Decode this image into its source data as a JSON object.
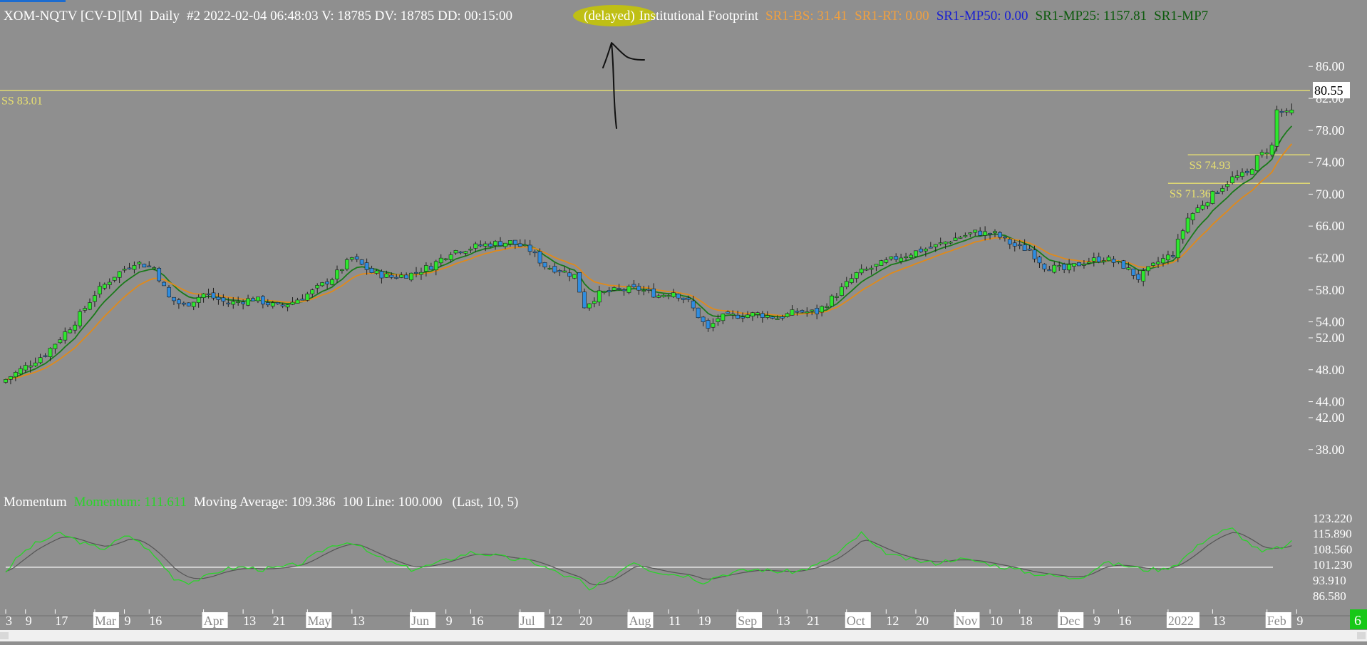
{
  "colors": {
    "background": "#8f8f8f",
    "up_candle": "#2ee82e",
    "down_candle": "#2f8de0",
    "ma_fast": "#1a7a1a",
    "ma_slow": "#e08a1a",
    "ss_line": "#e8e070",
    "momentum": "#2ad42a",
    "momentum_ma": "#555555",
    "hundred_line": "#ffffff",
    "highlight": "#c8c800",
    "text_white": "#ffffff",
    "text_orange": "#f0a040",
    "text_blue": "#1a20d0",
    "text_green": "#0b5a0b"
  },
  "header": {
    "symbol": "XOM-NQTV [CV-D][M]",
    "interval": "Daily",
    "bar_info": "#2 2022-02-04 06:48:03 V: 18785 DV: 18785 DD: 00:15:00",
    "delayed": "(delayed)",
    "study": "Institutional Footprint",
    "sr1_bs": "SR1-BS: 31.41",
    "sr1_rt": "SR1-RT: 0.00",
    "sr1_mp50": "SR1-MP50: 0.00",
    "sr1_mp25": "SR1-MP25: 1157.81",
    "sr1_mp7": "SR1-MP7"
  },
  "momentum_header": {
    "name": "Momentum",
    "value_label": "Momentum: 111.611",
    "ma_label": "Moving Average: 109.386",
    "line_label": "100 Line: 100.000",
    "params": "(Last, 10, 5)"
  },
  "corner_badge": "6",
  "chart_data": {
    "type": "candlestick",
    "price_axis_ticks": [
      86.0,
      82.0,
      78.0,
      74.0,
      70.0,
      66.0,
      62.0,
      58.0,
      54.0,
      52.0,
      48.0,
      44.0,
      42.0,
      38.0
    ],
    "price_axis_labels": [
      "86.00",
      "82.00",
      "78.00",
      "74.00",
      "70.00",
      "66.00",
      "62.00",
      "58.00",
      "54.00",
      "52.00",
      "48.00",
      "44.00",
      "42.00",
      "38.00"
    ],
    "last_price_label": "80.55",
    "last_price": 80.55,
    "ylim": [
      34.5,
      89.5
    ],
    "support_lines": [
      {
        "label": "SS  83.01",
        "value": 83.01,
        "from_x": 0
      },
      {
        "label": "SS  74.93",
        "value": 74.93,
        "from_x": 239
      },
      {
        "label": "SS  71.36",
        "value": 71.36,
        "from_x": 235
      }
    ],
    "x_axis_labels": [
      {
        "label": "3",
        "x": 0,
        "month": false
      },
      {
        "label": "9",
        "x": 4,
        "month": false
      },
      {
        "label": "17",
        "x": 10,
        "month": false
      },
      {
        "label": "Mar",
        "x": 18,
        "month": true
      },
      {
        "label": "9",
        "x": 24,
        "month": false
      },
      {
        "label": "16",
        "x": 29,
        "month": false
      },
      {
        "label": "Apr",
        "x": 40,
        "month": true
      },
      {
        "label": "13",
        "x": 48,
        "month": false
      },
      {
        "label": "21",
        "x": 54,
        "month": false
      },
      {
        "label": "May",
        "x": 61,
        "month": true
      },
      {
        "label": "13",
        "x": 70,
        "month": false
      },
      {
        "label": "Jun",
        "x": 82,
        "month": true
      },
      {
        "label": "9",
        "x": 89,
        "month": false
      },
      {
        "label": "16",
        "x": 94,
        "month": false
      },
      {
        "label": "Jul",
        "x": 104,
        "month": true
      },
      {
        "label": "12",
        "x": 110,
        "month": false
      },
      {
        "label": "20",
        "x": 116,
        "month": false
      },
      {
        "label": "Aug",
        "x": 126,
        "month": true
      },
      {
        "label": "11",
        "x": 134,
        "month": false
      },
      {
        "label": "19",
        "x": 140,
        "month": false
      },
      {
        "label": "Sep",
        "x": 148,
        "month": true
      },
      {
        "label": "13",
        "x": 156,
        "month": false
      },
      {
        "label": "21",
        "x": 162,
        "month": false
      },
      {
        "label": "Oct",
        "x": 170,
        "month": true
      },
      {
        "label": "12",
        "x": 178,
        "month": false
      },
      {
        "label": "20",
        "x": 184,
        "month": false
      },
      {
        "label": "Nov",
        "x": 192,
        "month": true
      },
      {
        "label": "10",
        "x": 199,
        "month": false
      },
      {
        "label": "18",
        "x": 205,
        "month": false
      },
      {
        "label": "Dec",
        "x": 213,
        "month": true
      },
      {
        "label": "9",
        "x": 220,
        "month": false
      },
      {
        "label": "16",
        "x": 225,
        "month": false
      },
      {
        "label": "2022",
        "x": 235,
        "month": true
      },
      {
        "label": "13",
        "x": 244,
        "month": false
      },
      {
        "label": "Feb",
        "x": 255,
        "month": true
      },
      {
        "label": "9",
        "x": 261,
        "month": false
      }
    ],
    "price_path": [
      [
        0,
        46.8
      ],
      [
        8,
        50.0
      ],
      [
        14,
        54.0
      ],
      [
        18,
        57.5
      ],
      [
        22,
        59.8
      ],
      [
        26,
        61.5
      ],
      [
        30,
        60.8
      ],
      [
        33,
        57.0
      ],
      [
        36,
        56.0
      ],
      [
        40,
        57.5
      ],
      [
        45,
        56.3
      ],
      [
        50,
        56.9
      ],
      [
        55,
        55.9
      ],
      [
        58,
        56.5
      ],
      [
        62,
        57.8
      ],
      [
        66,
        59.5
      ],
      [
        70,
        62.0
      ],
      [
        74,
        60.2
      ],
      [
        78,
        59.6
      ],
      [
        82,
        60.0
      ],
      [
        86,
        61.0
      ],
      [
        90,
        62.8
      ],
      [
        94,
        63.3
      ],
      [
        98,
        63.8
      ],
      [
        102,
        64.0
      ],
      [
        106,
        63.0
      ],
      [
        109,
        61.0
      ],
      [
        112,
        60.5
      ],
      [
        115,
        59.8
      ],
      [
        117,
        56.0
      ],
      [
        120,
        57.5
      ],
      [
        124,
        58.0
      ],
      [
        128,
        58.1
      ],
      [
        132,
        57.3
      ],
      [
        135,
        57.8
      ],
      [
        138,
        56.5
      ],
      [
        142,
        53.0
      ],
      [
        144,
        54.5
      ],
      [
        148,
        54.8
      ],
      [
        152,
        55.0
      ],
      [
        156,
        54.5
      ],
      [
        160,
        55.3
      ],
      [
        164,
        55.2
      ],
      [
        168,
        57.5
      ],
      [
        172,
        60.0
      ],
      [
        176,
        61.0
      ],
      [
        180,
        62.0
      ],
      [
        184,
        62.8
      ],
      [
        188,
        63.5
      ],
      [
        192,
        64.5
      ],
      [
        196,
        65.2
      ],
      [
        200,
        65.0
      ],
      [
        204,
        63.5
      ],
      [
        207,
        63.0
      ],
      [
        210,
        61.0
      ],
      [
        214,
        60.5
      ],
      [
        218,
        61.5
      ],
      [
        222,
        62.0
      ],
      [
        226,
        61.0
      ],
      [
        229,
        59.5
      ],
      [
        233,
        61.5
      ],
      [
        236,
        62.5
      ],
      [
        239,
        67.0
      ],
      [
        242,
        68.8
      ],
      [
        245,
        70.5
      ],
      [
        248,
        72.0
      ],
      [
        251,
        72.5
      ],
      [
        253,
        74.5
      ],
      [
        256,
        76.0
      ],
      [
        257,
        80.5
      ],
      [
        259,
        80.0
      ],
      [
        260,
        80.55
      ]
    ],
    "momentum_axis_labels": [
      "123.220",
      "115.890",
      "108.560",
      "101.230",
      "93.910",
      "86.580"
    ],
    "momentum_axis_values": [
      123.22,
      115.89,
      108.56,
      101.23,
      93.91,
      86.58
    ],
    "momentum_hundred": 100.0,
    "momentum_path": [
      [
        0,
        98
      ],
      [
        3,
        106
      ],
      [
        6,
        111
      ],
      [
        9,
        114
      ],
      [
        11,
        116
      ],
      [
        14,
        113
      ],
      [
        17,
        110
      ],
      [
        20,
        109
      ],
      [
        23,
        113
      ],
      [
        25,
        115
      ],
      [
        28,
        110
      ],
      [
        31,
        103
      ],
      [
        34,
        95
      ],
      [
        37,
        93
      ],
      [
        40,
        95
      ],
      [
        44,
        99
      ],
      [
        48,
        100
      ],
      [
        52,
        99
      ],
      [
        56,
        100
      ],
      [
        60,
        102
      ],
      [
        64,
        108
      ],
      [
        67,
        111
      ],
      [
        70,
        112
      ],
      [
        74,
        106
      ],
      [
        78,
        102
      ],
      [
        82,
        99
      ],
      [
        86,
        101
      ],
      [
        90,
        104
      ],
      [
        94,
        107
      ],
      [
        98,
        106
      ],
      [
        102,
        104
      ],
      [
        106,
        103
      ],
      [
        110,
        99
      ],
      [
        113,
        96
      ],
      [
        116,
        94
      ],
      [
        118,
        89
      ],
      [
        121,
        93
      ],
      [
        124,
        98
      ],
      [
        127,
        103
      ],
      [
        130,
        99
      ],
      [
        134,
        97
      ],
      [
        138,
        96
      ],
      [
        141,
        93
      ],
      [
        144,
        96
      ],
      [
        148,
        98
      ],
      [
        152,
        99
      ],
      [
        156,
        98
      ],
      [
        160,
        98
      ],
      [
        164,
        101
      ],
      [
        168,
        106
      ],
      [
        171,
        112
      ],
      [
        173,
        116
      ],
      [
        176,
        109
      ],
      [
        180,
        105
      ],
      [
        184,
        103
      ],
      [
        188,
        102
      ],
      [
        192,
        104
      ],
      [
        196,
        103
      ],
      [
        200,
        101
      ],
      [
        204,
        99
      ],
      [
        208,
        97
      ],
      [
        212,
        96
      ],
      [
        215,
        95
      ],
      [
        218,
        96
      ],
      [
        222,
        102
      ],
      [
        226,
        101
      ],
      [
        230,
        99
      ],
      [
        234,
        99
      ],
      [
        237,
        102
      ],
      [
        240,
        108
      ],
      [
        243,
        114
      ],
      [
        246,
        117
      ],
      [
        248,
        118
      ],
      [
        251,
        112
      ],
      [
        254,
        107
      ],
      [
        257,
        109
      ],
      [
        259,
        110
      ],
      [
        260,
        111.6
      ]
    ]
  }
}
